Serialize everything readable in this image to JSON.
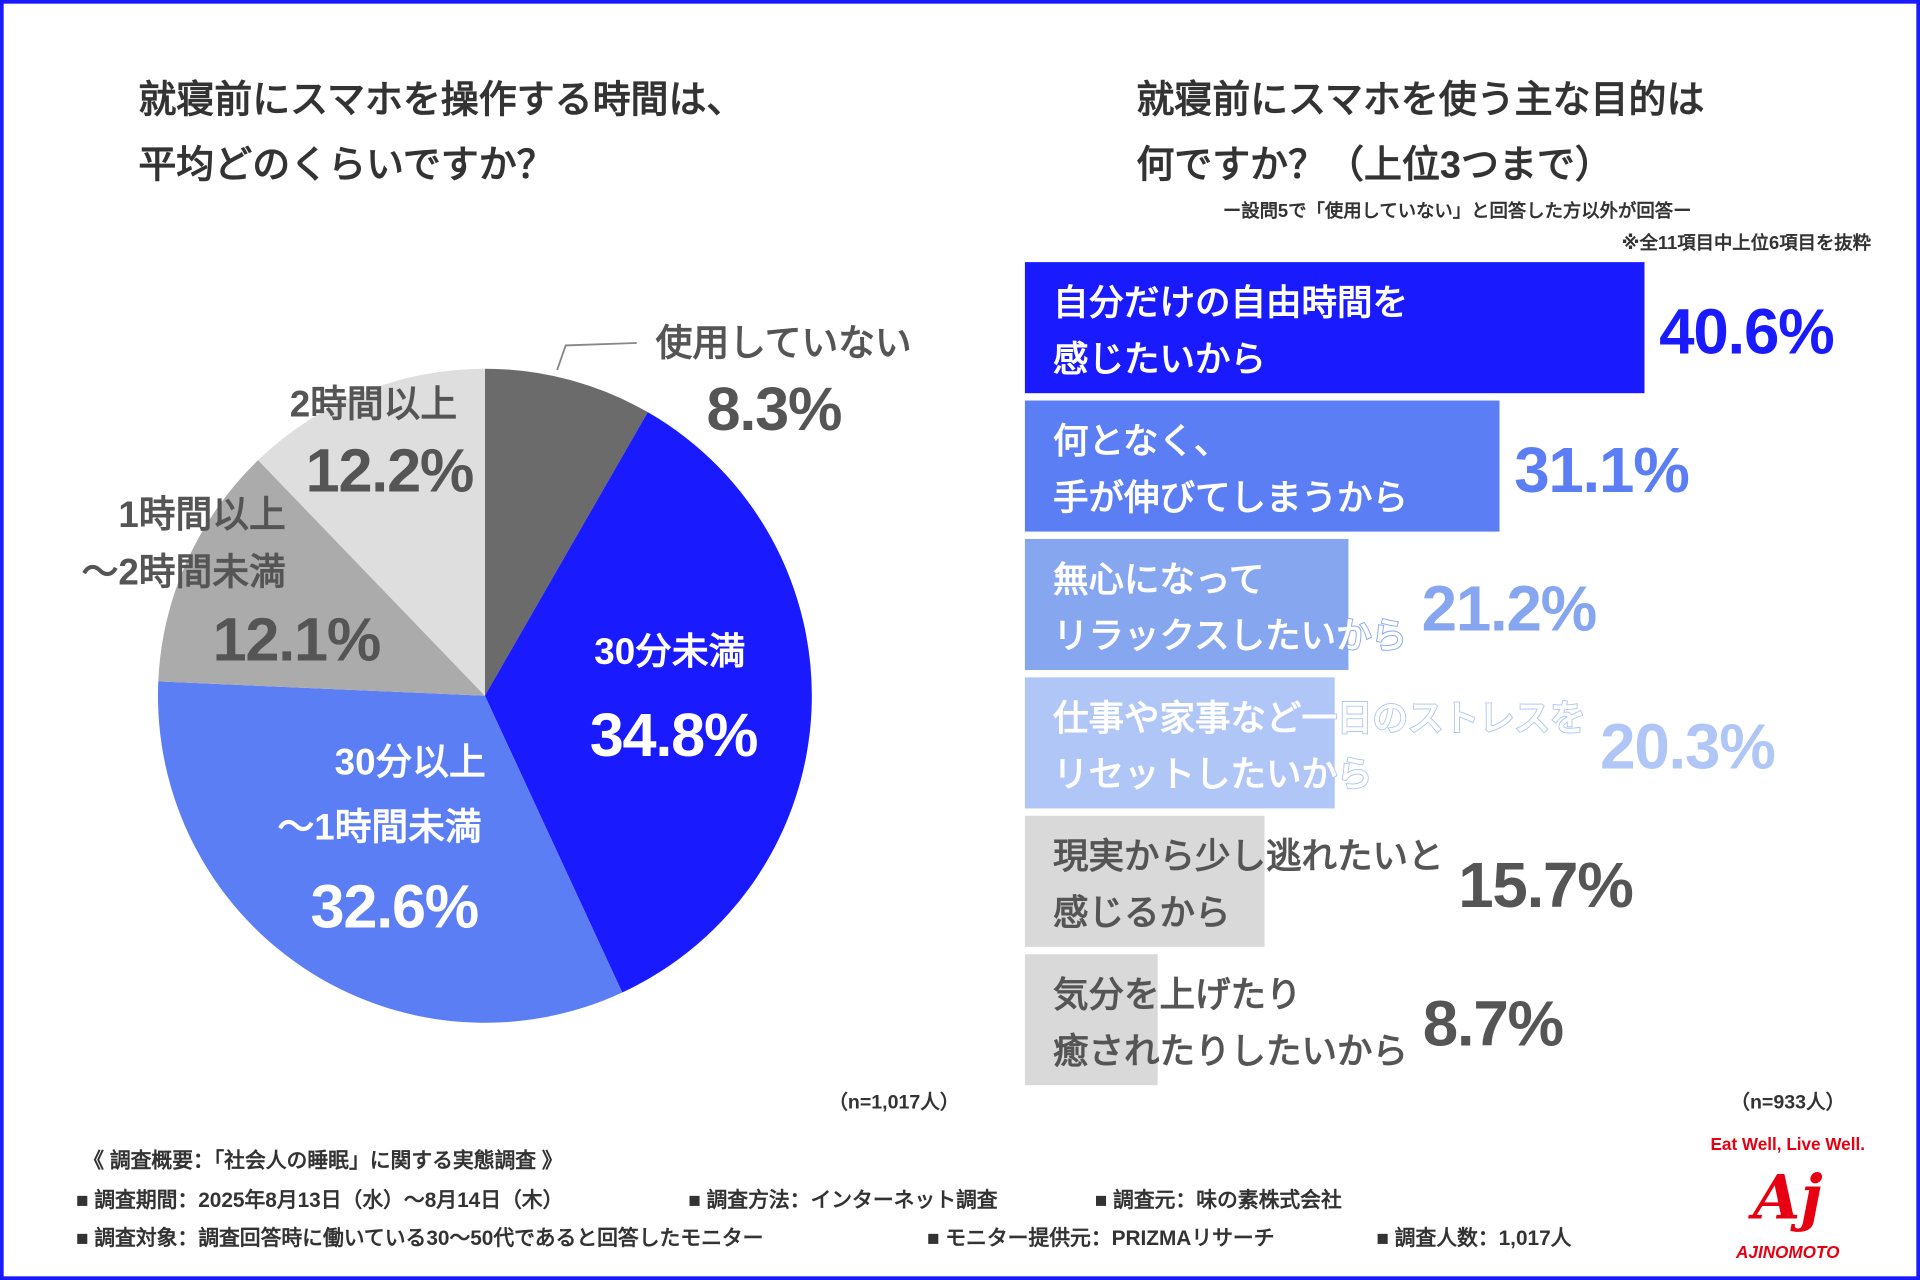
{
  "chart_data": [
    {
      "type": "pie",
      "title": [
        "就寝前にスマホを操作する時間は、",
        "平均どのくらいですか？"
      ],
      "categories": [
        [
          "使用していない"
        ],
        [
          "30分未満"
        ],
        [
          "30分以上",
          "～1時間未満"
        ],
        [
          "1時間以上",
          "～2時間未満"
        ],
        [
          "2時間以上"
        ]
      ],
      "values": [
        8.3,
        34.8,
        32.6,
        12.1,
        12.2
      ],
      "value_labels": [
        "8.3%",
        "34.8%",
        "32.6%",
        "12.1%",
        "12.2%"
      ],
      "colors": [
        "#6b6b6b",
        "#1a1aff",
        "#5c7ef5",
        "#ababab",
        "#dedede"
      ],
      "note": "（n=1,017人）"
    },
    {
      "type": "hbar",
      "title": [
        "就寝前にスマホを使う主な目的は",
        "何ですか？（上位3つまで）"
      ],
      "subtitle": "ー設問5で「使用していない」と回答した方以外が回答ー",
      "annotation": "※全11項目中上位6項目を抜粋",
      "categories": [
        [
          "自分だけの自由時間を",
          "感じたいから"
        ],
        [
          "何となく、",
          "手が伸びてしまうから"
        ],
        [
          "無心になって",
          "リラックスしたいから"
        ],
        [
          "仕事や家事など一日のストレスを",
          "リセットしたいから"
        ],
        [
          "現実から少し逃れたいと",
          "感じるから"
        ],
        [
          "気分を上げたり",
          "癒されたりしたいから"
        ]
      ],
      "values": [
        40.6,
        31.1,
        21.2,
        20.3,
        15.7,
        8.7
      ],
      "value_labels": [
        "40.6%",
        "31.1%",
        "21.2%",
        "20.3%",
        "15.7%",
        "8.7%"
      ],
      "colors": [
        "#1a1aff",
        "#5c7ef5",
        "#86a6f0",
        "#b0c6f6",
        "#d9d9d9",
        "#d9d9d9"
      ],
      "note": "（n=933人）"
    }
  ],
  "footer": {
    "heading": "《 調査概要：「社会人の睡眠」に関する実態調査 》",
    "rows": [
      [
        "■ 調査期間：2025年8月13日（水）～8月14日（木）",
        "■ 調査方法：インターネット調査",
        "■ 調査元：味の素株式会社"
      ],
      [
        "■ 調査対象：調査回答時に働いている30～50代であると回答したモニター",
        "■ モニター提供元：PRIZMAリサーチ",
        "■ 調査人数：1,017人"
      ]
    ]
  },
  "logo": {
    "tagline": "Eat Well, Live Well.",
    "mark": "Aj",
    "name": "AJINOMOTO"
  }
}
